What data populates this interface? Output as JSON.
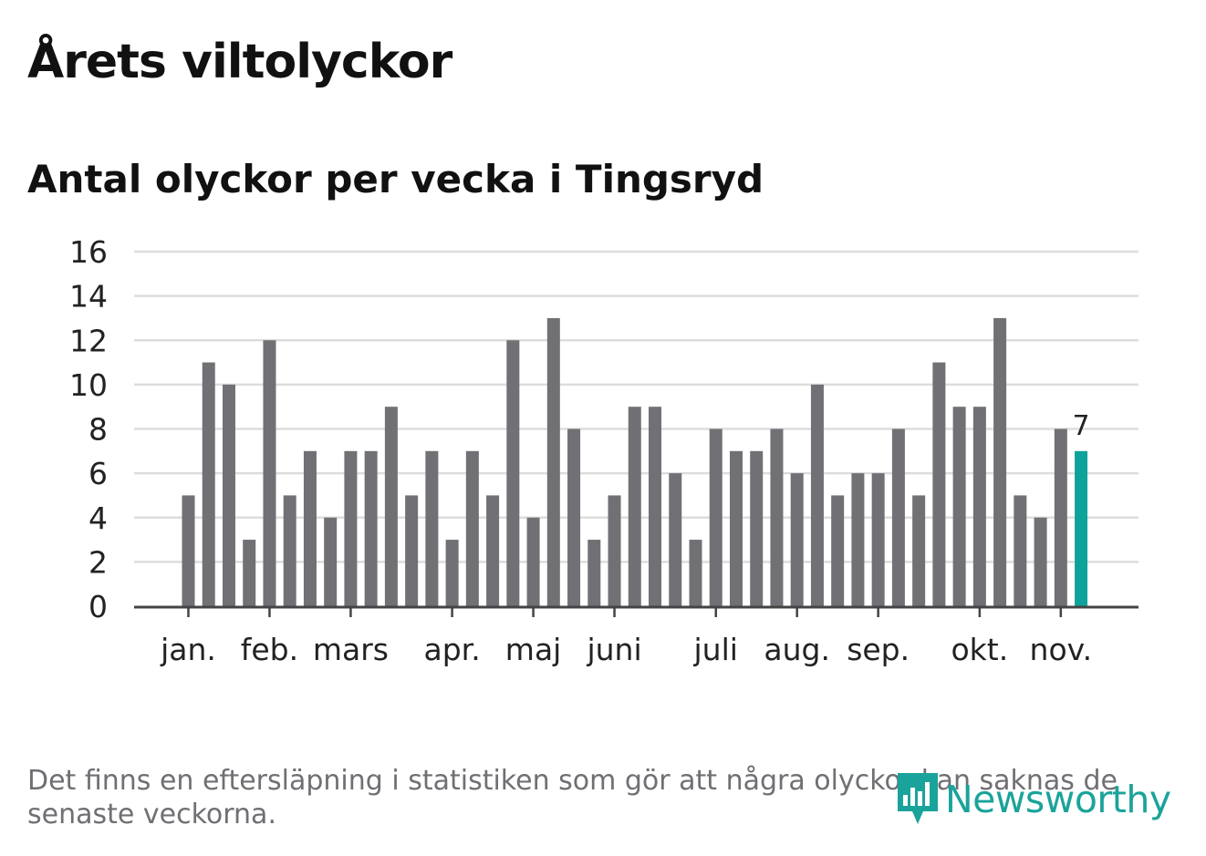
{
  "title": "Årets viltolyckor",
  "footnote": "Det finns en eftersläpning i statistiken som gör att några olyckor kan saknas de senaste veckorna.",
  "brand": {
    "name": "Newsworthy",
    "icon": "newsworthy-chart-icon",
    "color": "#1aa39a"
  },
  "colors": {
    "bar": "#707075",
    "highlight": "#0ea39a",
    "grid": "#dddddd",
    "axis": "#444444"
  },
  "chart_data": {
    "type": "bar",
    "title": "Antal olyckor per vecka i Tingsryd",
    "xlabel": "",
    "ylabel": "",
    "ylim": [
      0,
      16
    ],
    "yticks": [
      0,
      2,
      4,
      6,
      8,
      10,
      12,
      14,
      16
    ],
    "grid": true,
    "weeks": [
      1,
      2,
      3,
      4,
      5,
      6,
      7,
      8,
      9,
      10,
      11,
      12,
      13,
      14,
      15,
      16,
      17,
      18,
      19,
      20,
      21,
      22,
      23,
      24,
      25,
      26,
      27,
      28,
      29,
      30,
      31,
      32,
      33,
      34,
      35,
      36,
      37,
      38,
      39,
      40,
      41,
      42,
      43,
      44,
      45
    ],
    "values": [
      5,
      11,
      10,
      3,
      12,
      5,
      7,
      4,
      7,
      7,
      9,
      5,
      7,
      3,
      7,
      5,
      12,
      4,
      13,
      8,
      3,
      5,
      9,
      9,
      6,
      3,
      8,
      7,
      7,
      8,
      6,
      10,
      5,
      6,
      6,
      8,
      5,
      11,
      9,
      9,
      13,
      5,
      4,
      8,
      7
    ],
    "highlight_index": 44,
    "highlight_label": "7",
    "month_labels": [
      {
        "label": "jan.",
        "week": 1
      },
      {
        "label": "feb.",
        "week": 5
      },
      {
        "label": "mars",
        "week": 9
      },
      {
        "label": "apr.",
        "week": 14
      },
      {
        "label": "maj",
        "week": 18
      },
      {
        "label": "juni",
        "week": 22
      },
      {
        "label": "juli",
        "week": 27
      },
      {
        "label": "aug.",
        "week": 31
      },
      {
        "label": "sep.",
        "week": 35
      },
      {
        "label": "okt.",
        "week": 40
      },
      {
        "label": "nov.",
        "week": 44
      }
    ]
  }
}
